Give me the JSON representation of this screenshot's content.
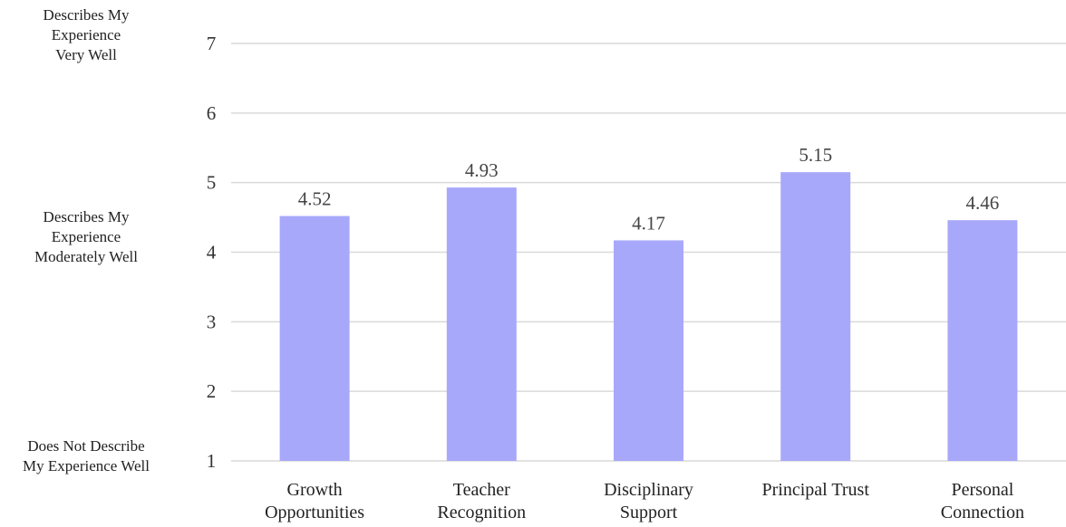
{
  "chart_data": {
    "type": "bar",
    "categories": [
      [
        "Growth",
        "Opportunities"
      ],
      [
        "Teacher",
        "Recognition"
      ],
      [
        "Disciplinary",
        "Support"
      ],
      [
        "Principal Trust"
      ],
      [
        "Personal",
        "Connection"
      ]
    ],
    "values": [
      4.52,
      4.93,
      4.17,
      5.15,
      4.46
    ],
    "value_labels": [
      "4.52",
      "4.93",
      "4.17",
      "5.15",
      "4.46"
    ],
    "ylim": [
      1,
      7
    ],
    "yticks": [
      1,
      2,
      3,
      4,
      5,
      6,
      7
    ],
    "grid": true,
    "bar_color": "#a8a8fb",
    "grid_color": "#d9d9d9",
    "scale_labels": [
      {
        "value": 7,
        "lines": [
          "Describes My",
          "Experience",
          "Very Well"
        ]
      },
      {
        "value": 4,
        "lines": [
          "Describes My",
          "Experience",
          "Moderately Well"
        ]
      },
      {
        "value": 1,
        "lines": [
          "Does Not Describe",
          "My Experience Well"
        ]
      }
    ]
  }
}
